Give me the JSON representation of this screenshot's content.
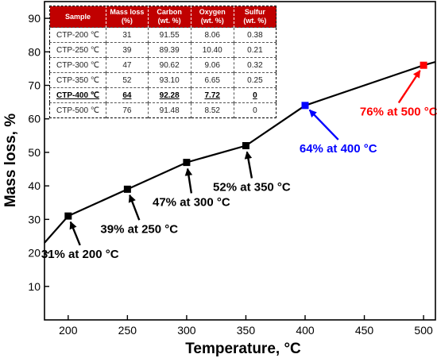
{
  "chart_data": {
    "type": "line",
    "xlabel": "Temperature, ",
    "xlabel_unit": "°C",
    "ylabel": "Mass loss, %",
    "xlim": [
      180,
      510
    ],
    "ylim": [
      0,
      95
    ],
    "x_ticks": [
      200,
      250,
      300,
      350,
      400,
      450,
      500
    ],
    "y_ticks": [
      10,
      20,
      30,
      40,
      50,
      60,
      70,
      80,
      90
    ],
    "grid": false,
    "line_extension": {
      "start": [
        180,
        23
      ],
      "end": [
        510,
        77
      ]
    },
    "series": [
      {
        "x": [
          200,
          250,
          300,
          350,
          400,
          500
        ],
        "values": [
          31,
          39,
          47,
          52,
          64,
          76
        ],
        "marker_colors": [
          "#000000",
          "#000000",
          "#000000",
          "#000000",
          "#0000ff",
          "#ff0000"
        ]
      }
    ],
    "annotations": [
      {
        "label": "31% at 200 ",
        "unit": "°C",
        "color": "#000000",
        "point_x": 200,
        "point_y": 31,
        "text_x": 210,
        "text_y": 18.5
      },
      {
        "label": "39% at 250 ",
        "unit": "°C",
        "color": "#000000",
        "point_x": 250,
        "point_y": 39,
        "text_x": 260,
        "text_y": 26
      },
      {
        "label": "47% at 300 ",
        "unit": "°C",
        "color": "#000000",
        "point_x": 300,
        "point_y": 47,
        "text_x": 304,
        "text_y": 34
      },
      {
        "label": "52% at 350 ",
        "unit": "°C",
        "color": "#000000",
        "point_x": 350,
        "point_y": 52,
        "text_x": 355,
        "text_y": 38.5
      },
      {
        "label": "64% at 400 ",
        "unit": "°C",
        "color": "#0000ff",
        "point_x": 400,
        "point_y": 64,
        "text_x": 428,
        "text_y": 50
      },
      {
        "label": "76% at 500 ",
        "unit": "°C",
        "color": "#ff0000",
        "point_x": 500,
        "point_y": 76,
        "text_x": 479,
        "text_y": 61
      }
    ]
  },
  "table": {
    "headers": [
      "Sample",
      "Mass loss\n(%)",
      "Carbon\n(wt. %)",
      "Oxygen\n(wt. %)",
      "Sulfur\n(wt. %)"
    ],
    "rows": [
      [
        "CTP-200 ℃",
        "31",
        "91.55",
        "8.06",
        "0.38"
      ],
      [
        "CTP-250 ℃",
        "39",
        "89.39",
        "10.40",
        "0.21"
      ],
      [
        "CTP-300 ℃",
        "47",
        "90.62",
        "9.06",
        "0.32"
      ],
      [
        "CTP-350 ℃",
        "52",
        "93.10",
        "6.65",
        "0.25"
      ],
      [
        "CTP-400 ℃",
        "64",
        "92.28",
        "7.72",
        "0"
      ],
      [
        "CTP-500 ℃",
        "76",
        "91.48",
        "8.52",
        "0"
      ]
    ],
    "highlight_row": 4
  }
}
